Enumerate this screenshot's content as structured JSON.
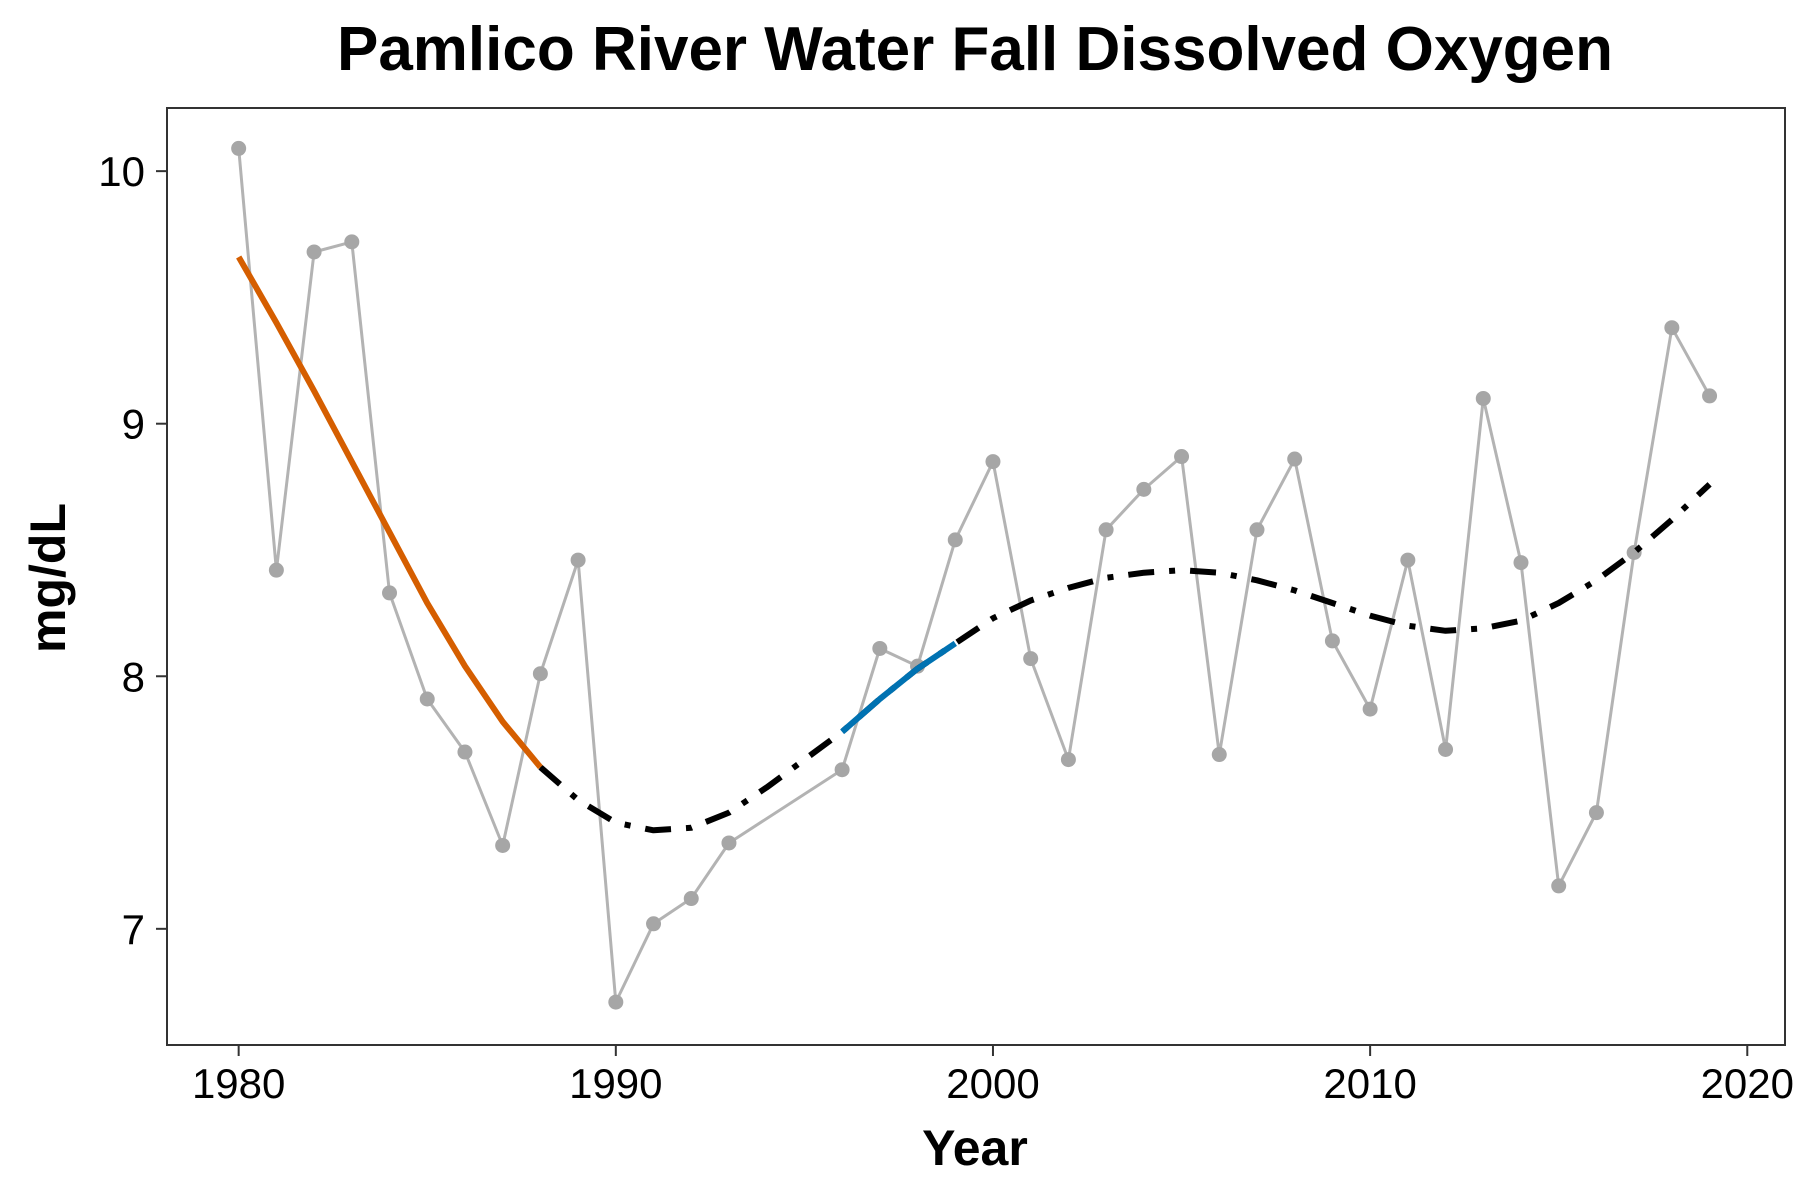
{
  "chart_data": {
    "type": "line",
    "title": "Pamlico River Water Fall Dissolved Oxygen",
    "xlabel": "Year",
    "ylabel": "mg/dL",
    "xlim": [
      1978.1,
      2021
    ],
    "ylim": [
      6.54,
      10.25
    ],
    "x_ticks": [
      1980,
      1990,
      2000,
      2010,
      2020
    ],
    "y_ticks": [
      7,
      8,
      9,
      10
    ],
    "x_tick_labels": [
      "1980",
      "1990",
      "2000",
      "2010",
      "2020"
    ],
    "y_tick_labels": [
      "7",
      "8",
      "9",
      "10"
    ],
    "grid": false,
    "observed": {
      "color": "#b3b3b3",
      "points": [
        [
          1980,
          10.09
        ],
        [
          1981,
          8.42
        ],
        [
          1982,
          9.68
        ],
        [
          1983,
          9.72
        ],
        [
          1984,
          8.33
        ],
        [
          1985,
          7.91
        ],
        [
          1986,
          7.7
        ],
        [
          1987,
          7.33
        ],
        [
          1988,
          8.01
        ],
        [
          1989,
          8.46
        ],
        [
          1990,
          6.71
        ],
        [
          1991,
          7.02
        ],
        [
          1992,
          7.12
        ],
        [
          1993,
          7.34
        ],
        [
          1996,
          7.63
        ],
        [
          1997,
          8.11
        ],
        [
          1998,
          8.04
        ],
        [
          1999,
          8.54
        ],
        [
          2000,
          8.85
        ],
        [
          2001,
          8.07
        ],
        [
          2002,
          7.67
        ],
        [
          2003,
          8.58
        ],
        [
          2004,
          8.74
        ],
        [
          2005,
          8.87
        ],
        [
          2006,
          7.69
        ],
        [
          2007,
          8.58
        ],
        [
          2008,
          8.86
        ],
        [
          2009,
          8.14
        ],
        [
          2010,
          7.87
        ],
        [
          2011,
          8.46
        ],
        [
          2012,
          7.71
        ],
        [
          2013,
          9.1
        ],
        [
          2014,
          8.45
        ],
        [
          2015,
          7.17
        ],
        [
          2016,
          7.46
        ],
        [
          2017,
          8.49
        ],
        [
          2018,
          9.38
        ],
        [
          2019,
          9.11
        ]
      ]
    },
    "trend": {
      "color": "#000000",
      "style": "dashed",
      "points": [
        [
          1988,
          7.64
        ],
        [
          1989,
          7.51
        ],
        [
          1990,
          7.42
        ],
        [
          1991,
          7.39
        ],
        [
          1992,
          7.4
        ],
        [
          1993,
          7.46
        ],
        [
          1994,
          7.56
        ],
        [
          1995,
          7.67
        ],
        [
          1996,
          7.78
        ],
        [
          1997,
          7.91
        ],
        [
          1998,
          8.03
        ],
        [
          1999,
          8.13
        ],
        [
          2000,
          8.23
        ],
        [
          2001,
          8.3
        ],
        [
          2002,
          8.35
        ],
        [
          2003,
          8.39
        ],
        [
          2004,
          8.41
        ],
        [
          2005,
          8.42
        ],
        [
          2006,
          8.41
        ],
        [
          2007,
          8.38
        ],
        [
          2008,
          8.34
        ],
        [
          2009,
          8.29
        ],
        [
          2010,
          8.24
        ],
        [
          2011,
          8.2
        ],
        [
          2012,
          8.18
        ],
        [
          2013,
          8.19
        ],
        [
          2014,
          8.22
        ],
        [
          2015,
          8.29
        ],
        [
          2016,
          8.38
        ],
        [
          2017,
          8.49
        ],
        [
          2018,
          8.62
        ],
        [
          2019,
          8.76
        ]
      ]
    },
    "decreasing_segment": {
      "color": "#d55e00",
      "points": [
        [
          1980,
          9.66
        ],
        [
          1981,
          9.4
        ],
        [
          1982,
          9.13
        ],
        [
          1983,
          8.85
        ],
        [
          1984,
          8.57
        ],
        [
          1985,
          8.29
        ],
        [
          1986,
          8.04
        ],
        [
          1987,
          7.82
        ],
        [
          1988,
          7.64
        ]
      ]
    },
    "increasing_segment": {
      "color": "#0072b2",
      "points": [
        [
          1996,
          7.78
        ],
        [
          1997,
          7.91
        ],
        [
          1998,
          8.03
        ],
        [
          1999,
          8.13
        ]
      ]
    }
  }
}
